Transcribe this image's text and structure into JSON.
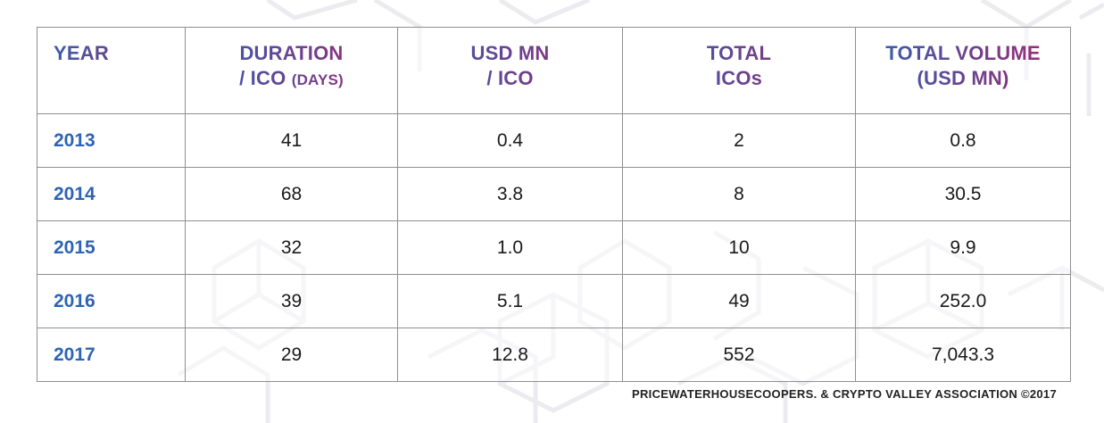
{
  "table": {
    "headers": {
      "year": "YEAR",
      "duration_line1": "DURATION",
      "duration_line2": "/ ICO",
      "duration_unit": "(DAYS)",
      "usd_line1": "USD MN",
      "usd_line2": "/ ICO",
      "total_line1": "TOTAL",
      "total_line2": "ICOs",
      "volume_line1": "TOTAL VOLUME",
      "volume_line2": "(USD MN)"
    },
    "rows": [
      {
        "year": "2013",
        "duration": "41",
        "usd_per_ico": "0.4",
        "total_icos": "2",
        "total_volume": "0.8"
      },
      {
        "year": "2014",
        "duration": "68",
        "usd_per_ico": "3.8",
        "total_icos": "8",
        "total_volume": "30.5"
      },
      {
        "year": "2015",
        "duration": "32",
        "usd_per_ico": "1.0",
        "total_icos": "10",
        "total_volume": "9.9"
      },
      {
        "year": "2016",
        "duration": "39",
        "usd_per_ico": "5.1",
        "total_icos": "49",
        "total_volume": "252.0"
      },
      {
        "year": "2017",
        "duration": "29",
        "usd_per_ico": "12.8",
        "total_icos": "552",
        "total_volume": "7,043.3"
      }
    ]
  },
  "source": "PRICEWATERHOUSECOOPERS. & CRYPTO VALLEY ASSOCIATION ©2017",
  "colors": {
    "gradient_start": "#2c63b3",
    "gradient_end": "#a5246e",
    "border": "#8f8f8f",
    "pattern": "#ececf0"
  }
}
